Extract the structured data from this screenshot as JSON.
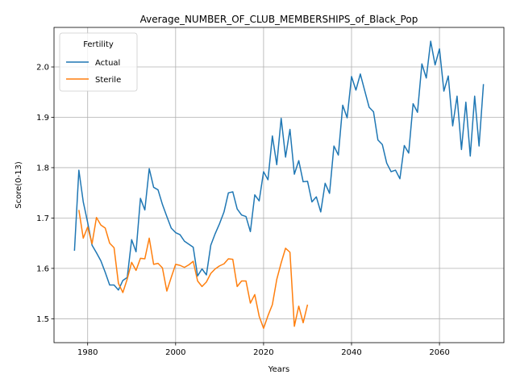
{
  "chart_data": {
    "type": "line",
    "title": "Average_NUMBER_OF_CLUB_MEMBERSHIPS_of_Black_Pop",
    "xlabel": "Years",
    "ylabel": "Score(0-13)",
    "xlim": [
      1972.35,
      2074.65
    ],
    "ylim": [
      1.4525,
      2.0785
    ],
    "xticks": [
      1980,
      2000,
      2020,
      2040,
      2060
    ],
    "yticks": [
      1.5,
      1.6,
      1.7,
      1.8,
      1.9,
      2.0
    ],
    "grid": true,
    "legend": {
      "title": "Fertility",
      "position": "top-left"
    },
    "series": [
      {
        "name": "Actual",
        "color": "#1f77b4",
        "x": [
          1977,
          1978,
          1979,
          1980,
          1981,
          1982,
          1983,
          1984,
          1985,
          1986,
          1987,
          1988,
          1989,
          1990,
          1991,
          1992,
          1993,
          1994,
          1995,
          1996,
          1997,
          1998,
          1999,
          2000,
          2001,
          2002,
          2003,
          2004,
          2005,
          2006,
          2007,
          2008,
          2009,
          2010,
          2011,
          2012,
          2013,
          2014,
          2015,
          2016,
          2017,
          2018,
          2019,
          2020,
          2021,
          2022,
          2023,
          2024,
          2025,
          2026,
          2027,
          2028,
          2029,
          2030,
          2031,
          2032,
          2033,
          2034,
          2035,
          2036,
          2037,
          2038,
          2039,
          2040,
          2041,
          2042,
          2043,
          2044,
          2045,
          2046,
          2047,
          2048,
          2049,
          2050,
          2051,
          2052,
          2053,
          2054,
          2055,
          2056,
          2057,
          2058,
          2059,
          2060,
          2061,
          2062,
          2063,
          2064,
          2065,
          2066,
          2067,
          2068,
          2069,
          2070
        ],
        "values": [
          1.635,
          1.795,
          1.732,
          1.691,
          1.646,
          1.631,
          1.615,
          1.592,
          1.567,
          1.567,
          1.557,
          1.576,
          1.582,
          1.657,
          1.633,
          1.739,
          1.716,
          1.798,
          1.761,
          1.756,
          1.727,
          1.703,
          1.68,
          1.671,
          1.667,
          1.654,
          1.648,
          1.642,
          1.585,
          1.599,
          1.587,
          1.646,
          1.669,
          1.689,
          1.712,
          1.75,
          1.752,
          1.718,
          1.706,
          1.703,
          1.673,
          1.746,
          1.734,
          1.792,
          1.776,
          1.863,
          1.806,
          1.898,
          1.821,
          1.876,
          1.787,
          1.814,
          1.772,
          1.773,
          1.732,
          1.742,
          1.712,
          1.769,
          1.749,
          1.843,
          1.825,
          1.924,
          1.899,
          1.981,
          1.954,
          1.986,
          1.953,
          1.92,
          1.911,
          1.855,
          1.846,
          1.809,
          1.792,
          1.795,
          1.778,
          1.844,
          1.829,
          1.927,
          1.91,
          2.006,
          1.978,
          2.051,
          2.004,
          2.036,
          1.952,
          1.982,
          1.883,
          1.942,
          1.836,
          1.93,
          1.823,
          1.942,
          1.843,
          1.966
        ]
      },
      {
        "name": "Sterile",
        "color": "#ff7f0e",
        "x": [
          1977,
          1978,
          1979,
          1980,
          1981,
          1982,
          1983,
          1984,
          1985,
          1986,
          1987,
          1988,
          1989,
          1990,
          1991,
          1992,
          1993,
          1994,
          1995,
          1996,
          1997,
          1998,
          1999,
          2000,
          2001,
          2002,
          2003,
          2004,
          2005,
          2006,
          2007,
          2008,
          2009,
          2010,
          2011,
          2012,
          2013,
          2014,
          2015,
          2016,
          2017,
          2018,
          2019,
          2020,
          2021,
          2022,
          2023,
          2024,
          2025,
          2026,
          2027,
          2028,
          2029,
          2030
        ],
        "values": [
          null,
          1.716,
          1.66,
          1.682,
          1.649,
          1.701,
          1.686,
          1.68,
          1.65,
          1.641,
          1.57,
          1.552,
          1.579,
          1.612,
          1.596,
          1.62,
          1.619,
          1.66,
          1.608,
          1.61,
          1.601,
          1.555,
          1.582,
          1.608,
          1.606,
          1.602,
          1.607,
          1.614,
          1.575,
          1.564,
          1.573,
          1.59,
          1.599,
          1.605,
          1.609,
          1.619,
          1.618,
          1.564,
          1.575,
          1.575,
          1.531,
          1.548,
          1.505,
          1.481,
          1.506,
          1.528,
          1.578,
          1.611,
          1.64,
          1.632,
          1.485,
          1.525,
          1.492,
          1.528
        ]
      }
    ]
  }
}
